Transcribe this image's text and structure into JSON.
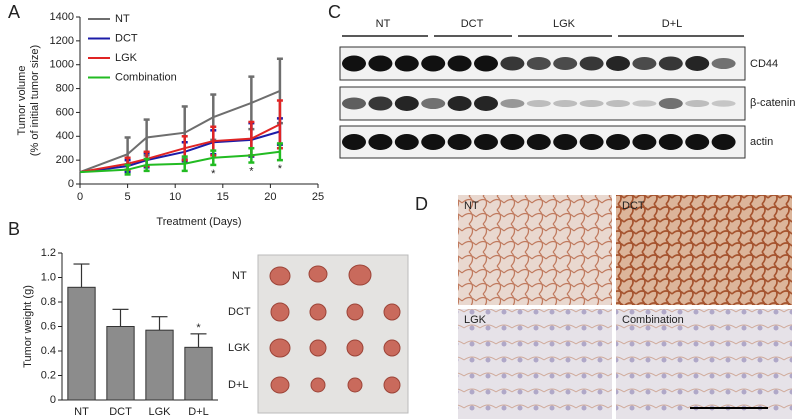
{
  "chart_data": [
    {
      "type": "line",
      "ylabel": [
        "Tumor volume",
        "(% of initial tumor size)"
      ],
      "xlabel": "Treatment (Days)",
      "x": [
        0,
        5,
        7,
        11,
        14,
        18,
        21
      ],
      "series": [
        {
          "name": "NT",
          "color": "#6e6e6e",
          "values": [
            100,
            250,
            390,
            430,
            560,
            680,
            780
          ],
          "errors": [
            0,
            140,
            150,
            220,
            190,
            220,
            270
          ]
        },
        {
          "name": "DCT",
          "color": "#1c1ca8",
          "values": [
            100,
            150,
            200,
            270,
            350,
            370,
            440
          ],
          "errors": [
            0,
            50,
            60,
            80,
            100,
            140,
            110
          ]
        },
        {
          "name": "LGK",
          "color": "#e02424",
          "values": [
            100,
            170,
            210,
            300,
            360,
            380,
            500
          ],
          "errors": [
            0,
            50,
            60,
            100,
            120,
            140,
            200
          ]
        },
        {
          "name": "Combination",
          "color": "#22bb22",
          "values": [
            100,
            120,
            160,
            170,
            220,
            240,
            270
          ],
          "errors": [
            0,
            40,
            50,
            60,
            60,
            60,
            70
          ]
        }
      ],
      "xlim": [
        0,
        25
      ],
      "xticks": [
        0,
        5,
        10,
        15,
        20,
        25
      ],
      "ylim": [
        0,
        1400
      ],
      "yticks": [
        0,
        200,
        400,
        600,
        800,
        1000,
        1200,
        1400
      ],
      "legend": "upper left",
      "annotations": [
        {
          "text": "*",
          "x": 14
        },
        {
          "text": "*",
          "x": 18
        },
        {
          "text": "*",
          "x": 21
        }
      ]
    },
    {
      "type": "bar",
      "ylabel": "Tumor weight (g)",
      "categories": [
        "NT",
        "DCT",
        "LGK",
        "D+L"
      ],
      "values": [
        0.92,
        0.6,
        0.57,
        0.43
      ],
      "errors": [
        0.19,
        0.14,
        0.11,
        0.11
      ],
      "color": "#8c8c8c",
      "ylim": [
        0,
        1.2
      ],
      "yticks": [
        0,
        0.2,
        0.4,
        0.6,
        0.8,
        {
          "value": 1,
          "label": "1.0"
        },
        1.2
      ],
      "annotations": [
        {
          "text": "*",
          "category": 3
        }
      ]
    }
  ],
  "figure": {
    "panel_labels": [
      "A",
      "B",
      "C",
      "D"
    ],
    "photo_labels": [
      "NT",
      "DCT",
      "LGK",
      "D+L"
    ],
    "blot_groups": [
      "NT",
      "DCT",
      "LGK",
      "D+L"
    ],
    "blot_rows": [
      "CD44",
      "β-catenin",
      "actin"
    ],
    "ihc_labels": [
      "NT",
      "DCT",
      "LGK",
      "Combination"
    ]
  }
}
